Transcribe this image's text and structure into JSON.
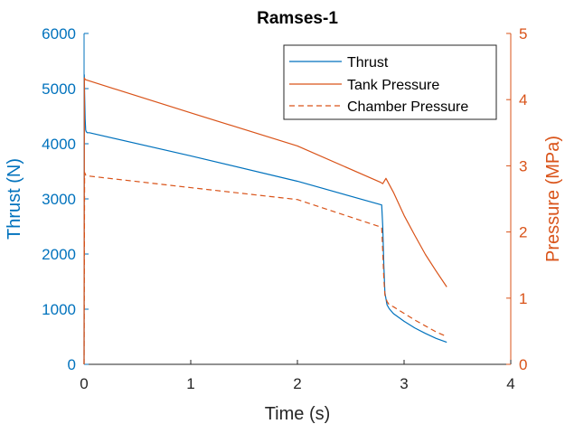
{
  "colors": {
    "thrust": "#0072BD",
    "pressure": "#D95319",
    "axis": "#262626"
  },
  "chart_data": {
    "type": "line",
    "title": "Ramses-1",
    "xlabel": "Time (s)",
    "ylabel_left": "Thrust (N)",
    "ylabel_right": "Pressure (MPa)",
    "xlim": [
      0,
      4
    ],
    "ylim_left": [
      0,
      6000
    ],
    "ylim_right": [
      0,
      5
    ],
    "xticks": [
      "0",
      "1",
      "2",
      "3",
      "4"
    ],
    "yticks_left": [
      "0",
      "1000",
      "2000",
      "3000",
      "4000",
      "5000",
      "6000"
    ],
    "yticks_right": [
      "0",
      "1",
      "2",
      "3",
      "4",
      "5"
    ],
    "grid": false,
    "legend_position": "top-right",
    "series": [
      {
        "name": "Thrust",
        "axis": "left",
        "style": "solid",
        "x": [
          0,
          0.002,
          0.005,
          0.01,
          0.015,
          0.02,
          0.03,
          0.05,
          1.0,
          2.0,
          2.79,
          2.8,
          2.81,
          2.82,
          2.84,
          2.86,
          2.9,
          3.0,
          3.1,
          3.2,
          3.3,
          3.4
        ],
        "y": [
          0,
          5250,
          4900,
          4450,
          4250,
          4220,
          4200,
          4200,
          3780,
          3320,
          2890,
          2500,
          1800,
          1300,
          1080,
          1010,
          920,
          780,
          660,
          560,
          470,
          400
        ]
      },
      {
        "name": "Tank Pressure",
        "axis": "right",
        "style": "solid",
        "x": [
          0,
          0.003,
          0.008,
          0.015,
          1.0,
          2.0,
          2.78,
          2.8,
          2.83,
          2.9,
          3.0,
          3.1,
          3.2,
          3.3,
          3.4
        ],
        "y": [
          0,
          4.33,
          4.31,
          4.3,
          3.8,
          3.3,
          2.75,
          2.73,
          2.81,
          2.6,
          2.25,
          1.95,
          1.66,
          1.41,
          1.17
        ]
      },
      {
        "name": "Chamber Pressure",
        "axis": "right",
        "style": "dashed",
        "x": [
          0,
          0.005,
          0.015,
          0.02,
          1.0,
          2.0,
          2.79,
          2.8,
          2.81,
          2.82,
          2.84,
          2.86,
          2.9,
          3.0,
          3.1,
          3.2,
          3.3,
          3.4
        ],
        "y": [
          0,
          2.9,
          2.86,
          2.85,
          2.67,
          2.49,
          2.07,
          1.7,
          1.3,
          1.05,
          0.95,
          0.9,
          0.87,
          0.77,
          0.67,
          0.58,
          0.49,
          0.42
        ]
      }
    ]
  }
}
